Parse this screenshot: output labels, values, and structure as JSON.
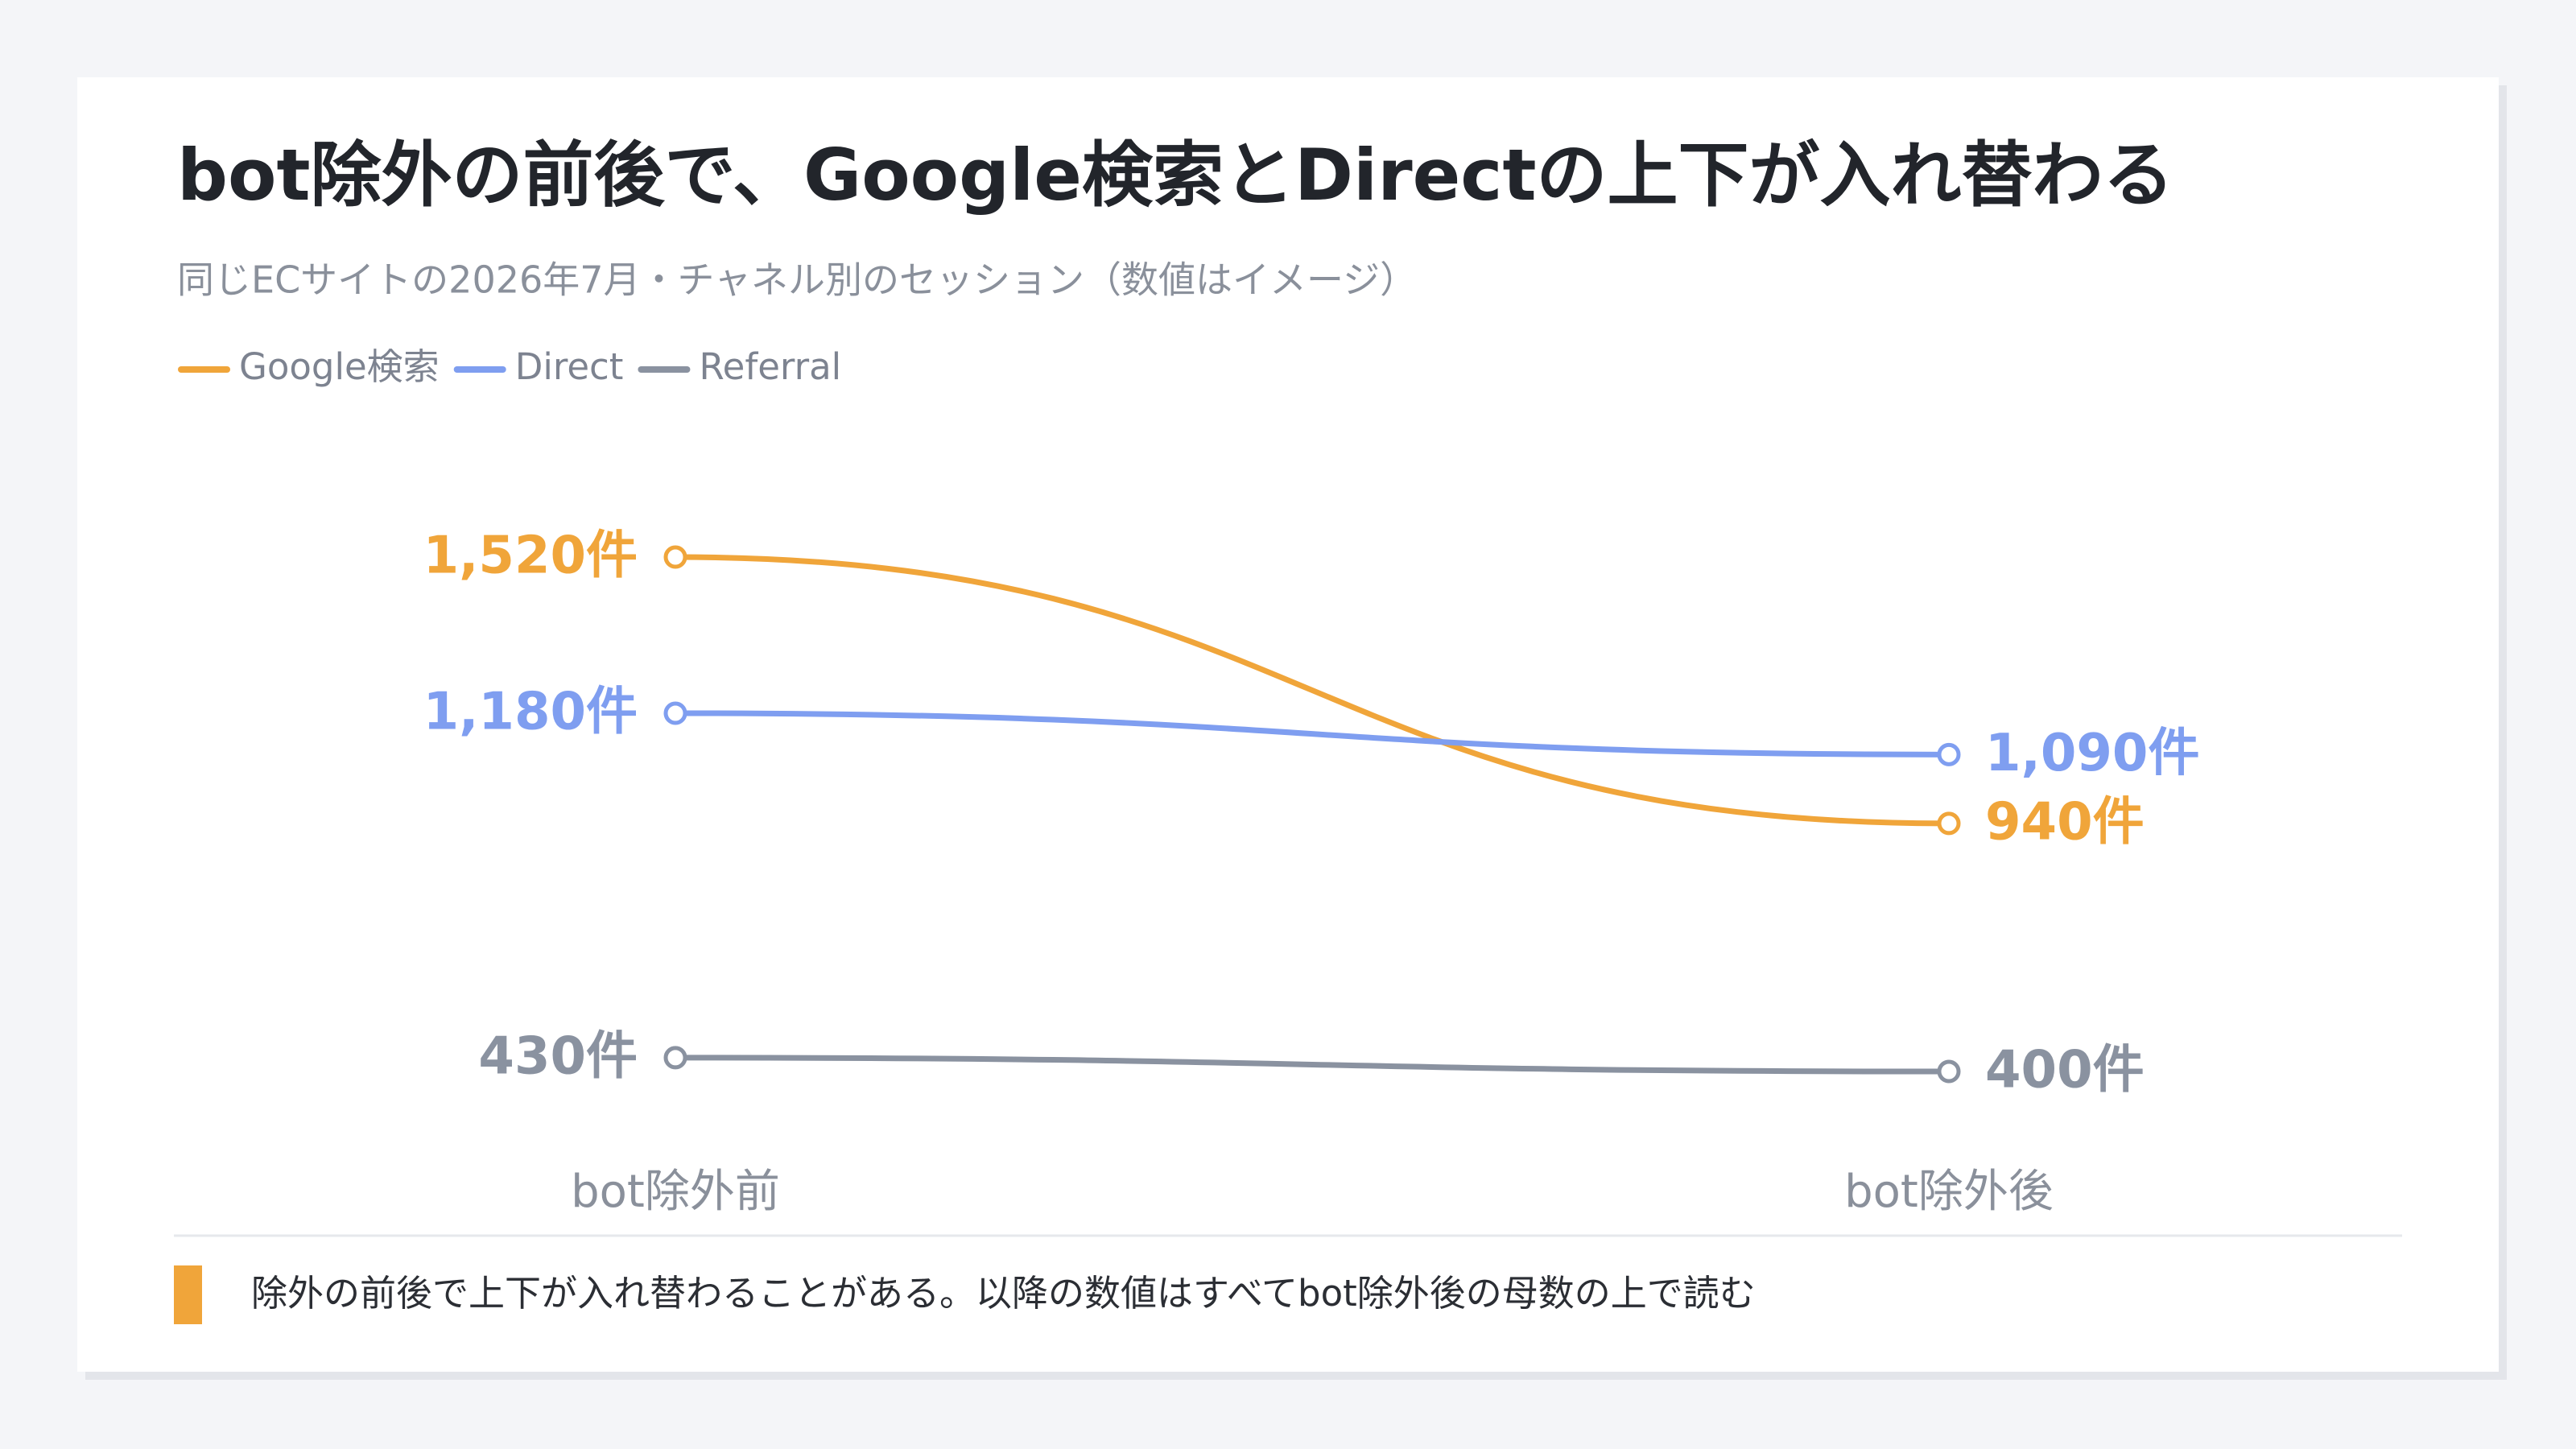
{
  "chart_data": {
    "type": "slope",
    "title": "bot除外の前後で、Google検索とDirectの上下が入れ替わる",
    "subtitle": "同じECサイトの2026年7月・チャネル別のセッション（数値はイメージ）",
    "categories": [
      "bot除外前",
      "bot除外後"
    ],
    "series": [
      {
        "name": "Google検索",
        "color": "#f0a53a",
        "values": [
          1520,
          940
        ],
        "value_labels": [
          "1,520件",
          "940件"
        ]
      },
      {
        "name": "Direct",
        "color": "#7f9ef0",
        "values": [
          1180,
          1090
        ],
        "value_labels": [
          "1,180件",
          "1,090件"
        ]
      },
      {
        "name": "Referral",
        "color": "#8a92a0",
        "values": [
          430,
          400
        ],
        "value_labels": [
          "430件",
          "400件"
        ]
      }
    ]
  },
  "footer": {
    "note": "除外の前後で上下が入れ替わることがある。以降の数値はすべてbot除外後の母数の上で読む"
  }
}
